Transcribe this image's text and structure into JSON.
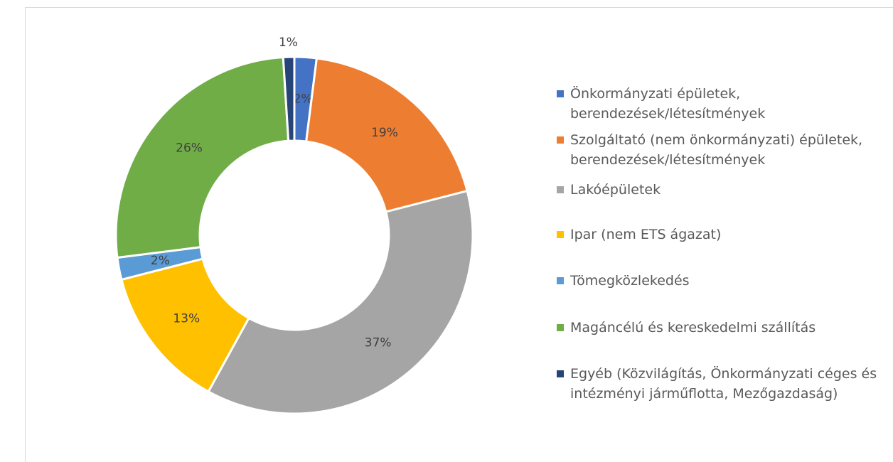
{
  "chart_data": {
    "type": "donut",
    "categories": [
      "Önkormányzati épületek, berendezések/létesítmények",
      "Szolgáltató (nem önkormányzati) épületek, berendezések/létesítmények",
      "Lakóépületek",
      "Ipar (nem ETS ágazat)",
      "Tömegközlekedés",
      "Magáncélú és kereskedelmi szállítás",
      "Egyéb (Közvilágítás, Önkormányzati céges és intézményi járműflotta, Mezőgazdaság)"
    ],
    "values": [
      2,
      19,
      37,
      13,
      2,
      26,
      1
    ],
    "value_labels": [
      "2%",
      "19%",
      "37%",
      "13%",
      "2%",
      "26%",
      "1%"
    ],
    "colors": [
      "#4472c4",
      "#ed7d31",
      "#a5a5a5",
      "#ffc000",
      "#5b9bd5",
      "#70ad47",
      "#264478"
    ],
    "legend": "right"
  }
}
